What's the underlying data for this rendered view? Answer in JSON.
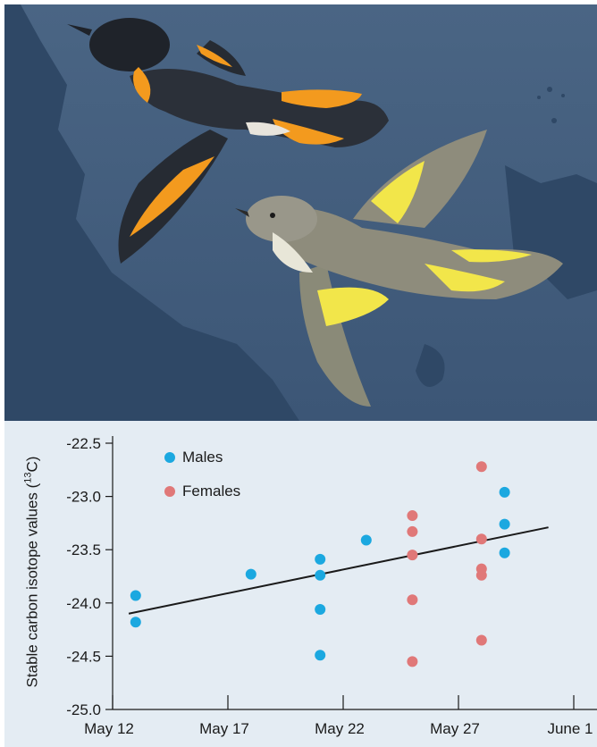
{
  "colors": {
    "male": "#1ba8e0",
    "female": "#e07878",
    "trendline": "#1a1a1a",
    "plot_background": "#e4ecf3",
    "illustration_sky": "#3d5877",
    "illustration_land": "#2f4866"
  },
  "illustration": {
    "subject": "male-and-female-american-redstart"
  },
  "chart_data": {
    "type": "scatter",
    "xlabel": "",
    "ylabel": "Stable carbon isotope values (",
    "ylabel_superscript": "13",
    "ylabel_suffix": "C)",
    "x_ticks": [
      "May 12",
      "May 17",
      "May 22",
      "May 27",
      "June 1"
    ],
    "y_ticks": [
      "-22.5",
      "-23.0",
      "-23.5",
      "-24.0",
      "-24.5",
      "-25.0"
    ],
    "xlim": [
      "May 12",
      "June 1"
    ],
    "ylim": [
      -25.0,
      -22.5
    ],
    "grid": false,
    "legend_position": "top-left",
    "series": [
      {
        "name": "Males",
        "points": [
          {
            "x": "May 13",
            "y": -23.93
          },
          {
            "x": "May 13",
            "y": -24.18
          },
          {
            "x": "May 18",
            "y": -23.73
          },
          {
            "x": "May 21",
            "y": -23.59
          },
          {
            "x": "May 21",
            "y": -23.74
          },
          {
            "x": "May 21",
            "y": -24.06
          },
          {
            "x": "May 21",
            "y": -24.49
          },
          {
            "x": "May 23",
            "y": -23.41
          },
          {
            "x": "May 29",
            "y": -22.96
          },
          {
            "x": "May 29",
            "y": -23.26
          },
          {
            "x": "May 29",
            "y": -23.53
          }
        ]
      },
      {
        "name": "Females",
        "points": [
          {
            "x": "May 25",
            "y": -23.18
          },
          {
            "x": "May 25",
            "y": -23.33
          },
          {
            "x": "May 25",
            "y": -23.55
          },
          {
            "x": "May 25",
            "y": -23.97
          },
          {
            "x": "May 25",
            "y": -24.55
          },
          {
            "x": "May 28",
            "y": -22.72
          },
          {
            "x": "May 28",
            "y": -23.4
          },
          {
            "x": "May 28",
            "y": -23.68
          },
          {
            "x": "May 28",
            "y": -23.74
          },
          {
            "x": "May 28",
            "y": -24.35
          }
        ]
      }
    ],
    "trendline": {
      "from": {
        "x": "May 12.7",
        "y": -24.1
      },
      "to": {
        "x": "May 30.9",
        "y": -23.29
      }
    }
  }
}
